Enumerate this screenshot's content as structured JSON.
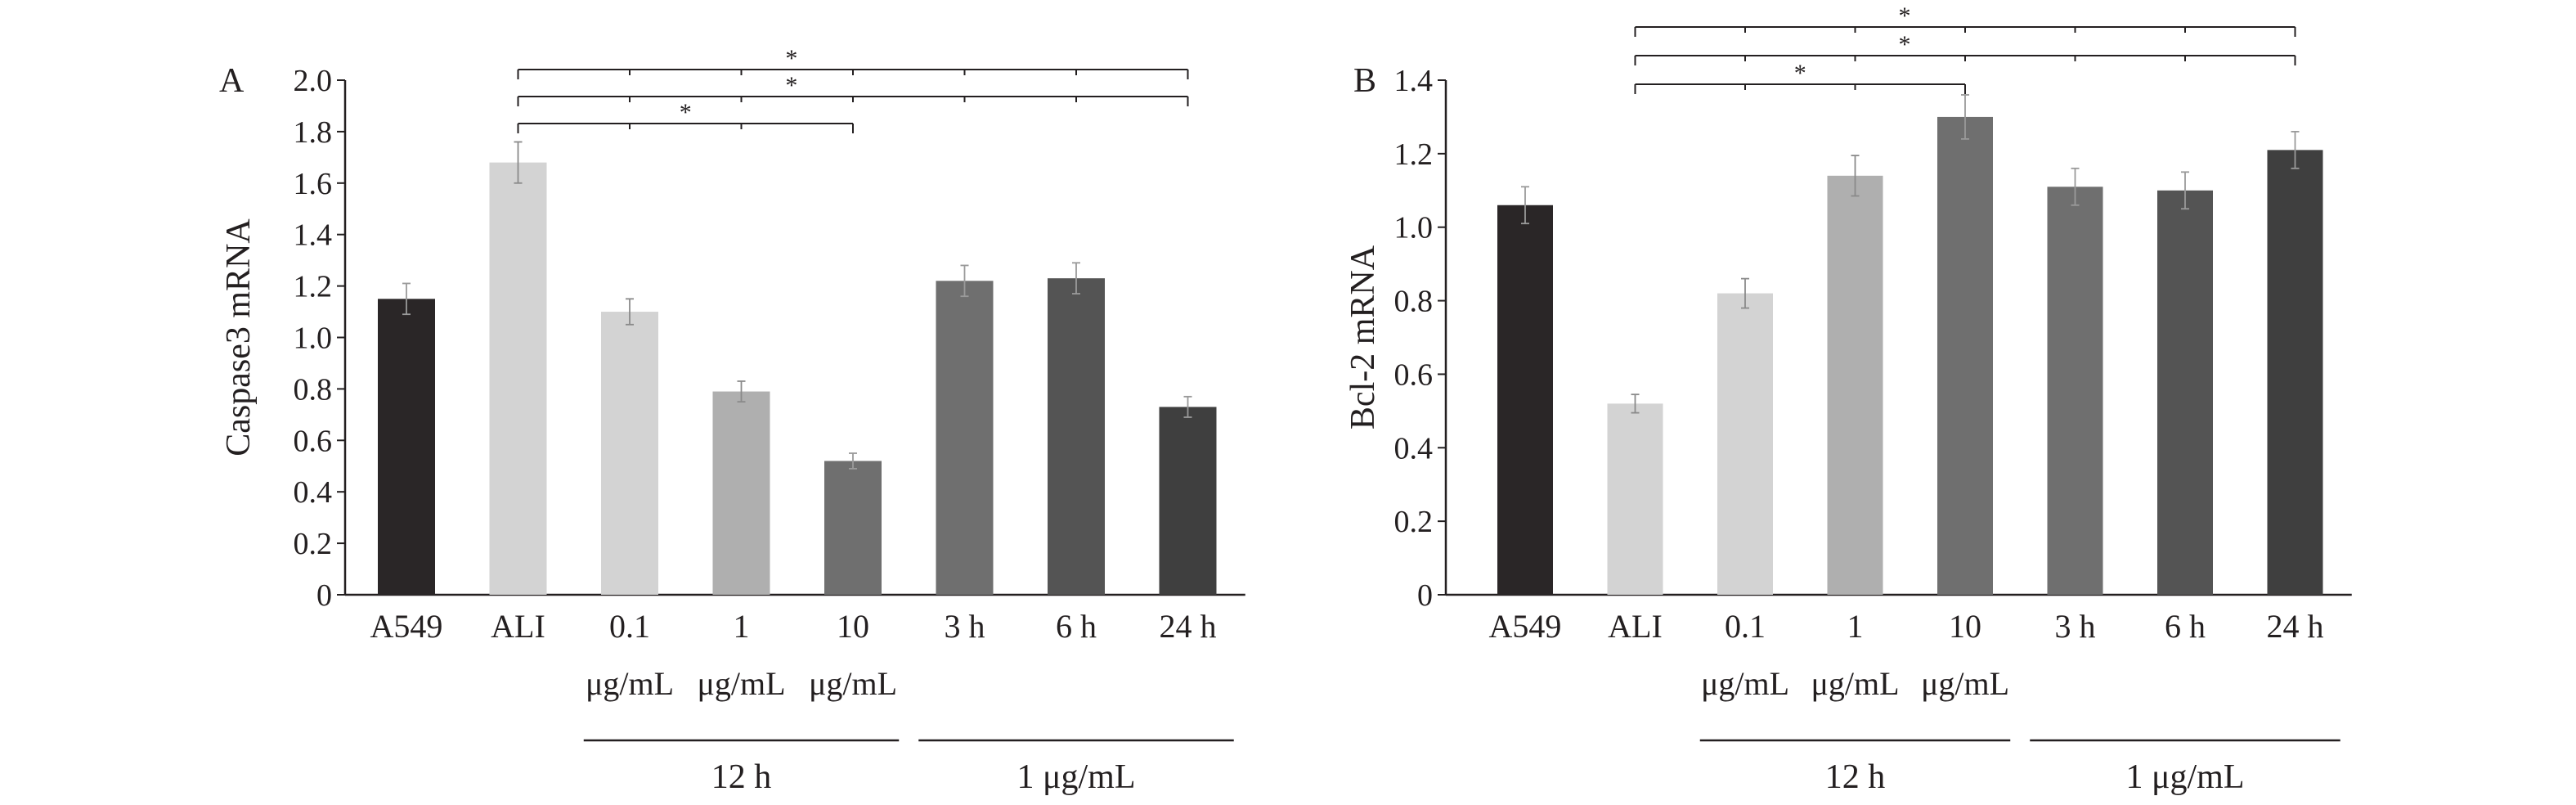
{
  "chart_data": [
    {
      "type": "bar",
      "panel_label": "A",
      "ylabel": "Caspase3 mRNA",
      "ylim": [
        0,
        2.0
      ],
      "yticks": [
        "0",
        "0.2",
        "0.4",
        "0.6",
        "0.8",
        "1.0",
        "1.2",
        "1.4",
        "1.6",
        "1.8",
        "2.0"
      ],
      "categories": [
        "A549",
        "ALI",
        "0.1",
        "1",
        "10",
        "3 h",
        "6 h",
        "24 h"
      ],
      "sublabels": [
        "",
        "",
        "μg/mL",
        "μg/mL",
        "μg/mL",
        "",
        "",
        ""
      ],
      "values": [
        1.15,
        1.68,
        1.1,
        0.79,
        0.52,
        1.22,
        1.23,
        0.73
      ],
      "errors": [
        0.06,
        0.08,
        0.05,
        0.04,
        0.03,
        0.06,
        0.06,
        0.04
      ],
      "colors": [
        "#2a2627",
        "#d3d3d3",
        "#d3d3d3",
        "#afafaf",
        "#6f6f6f",
        "#6f6f6f",
        "#545454",
        "#3f3f3f"
      ],
      "groups": [
        {
          "label": "12 h",
          "from": 2,
          "to": 4
        },
        {
          "label": "1 μg/mL",
          "from": 5,
          "to": 7
        }
      ],
      "significance": [
        {
          "level": 0,
          "ref": 1,
          "to": 4,
          "label": "*"
        },
        {
          "level": 1,
          "ref": 1,
          "to": 7,
          "label": "*"
        },
        {
          "level": 2,
          "ref": 1,
          "to": 7,
          "label": "*"
        }
      ]
    },
    {
      "type": "bar",
      "panel_label": "B",
      "ylabel": "Bcl-2 mRNA",
      "ylim": [
        0,
        1.4
      ],
      "yticks": [
        "0",
        "0.2",
        "0.4",
        "0.6",
        "0.8",
        "1.0",
        "1.2",
        "1.4"
      ],
      "categories": [
        "A549",
        "ALI",
        "0.1",
        "1",
        "10",
        "3 h",
        "6 h",
        "24 h"
      ],
      "sublabels": [
        "",
        "",
        "μg/mL",
        "μg/mL",
        "μg/mL",
        "",
        "",
        ""
      ],
      "values": [
        1.06,
        0.52,
        0.82,
        1.14,
        1.3,
        1.11,
        1.1,
        1.21
      ],
      "errors": [
        0.05,
        0.025,
        0.04,
        0.055,
        0.06,
        0.05,
        0.05,
        0.05
      ],
      "colors": [
        "#2a2627",
        "#d3d3d3",
        "#d3d3d3",
        "#afafaf",
        "#6f6f6f",
        "#6f6f6f",
        "#545454",
        "#3f3f3f"
      ],
      "groups": [
        {
          "label": "12 h",
          "from": 2,
          "to": 4
        },
        {
          "label": "1 μg/mL",
          "from": 5,
          "to": 7
        }
      ],
      "significance": [
        {
          "level": 0,
          "ref": 1,
          "to": 4,
          "label": "*"
        },
        {
          "level": 1,
          "ref": 1,
          "to": 7,
          "label": "*"
        },
        {
          "level": 2,
          "ref": 1,
          "to": 7,
          "label": "*"
        }
      ]
    }
  ]
}
